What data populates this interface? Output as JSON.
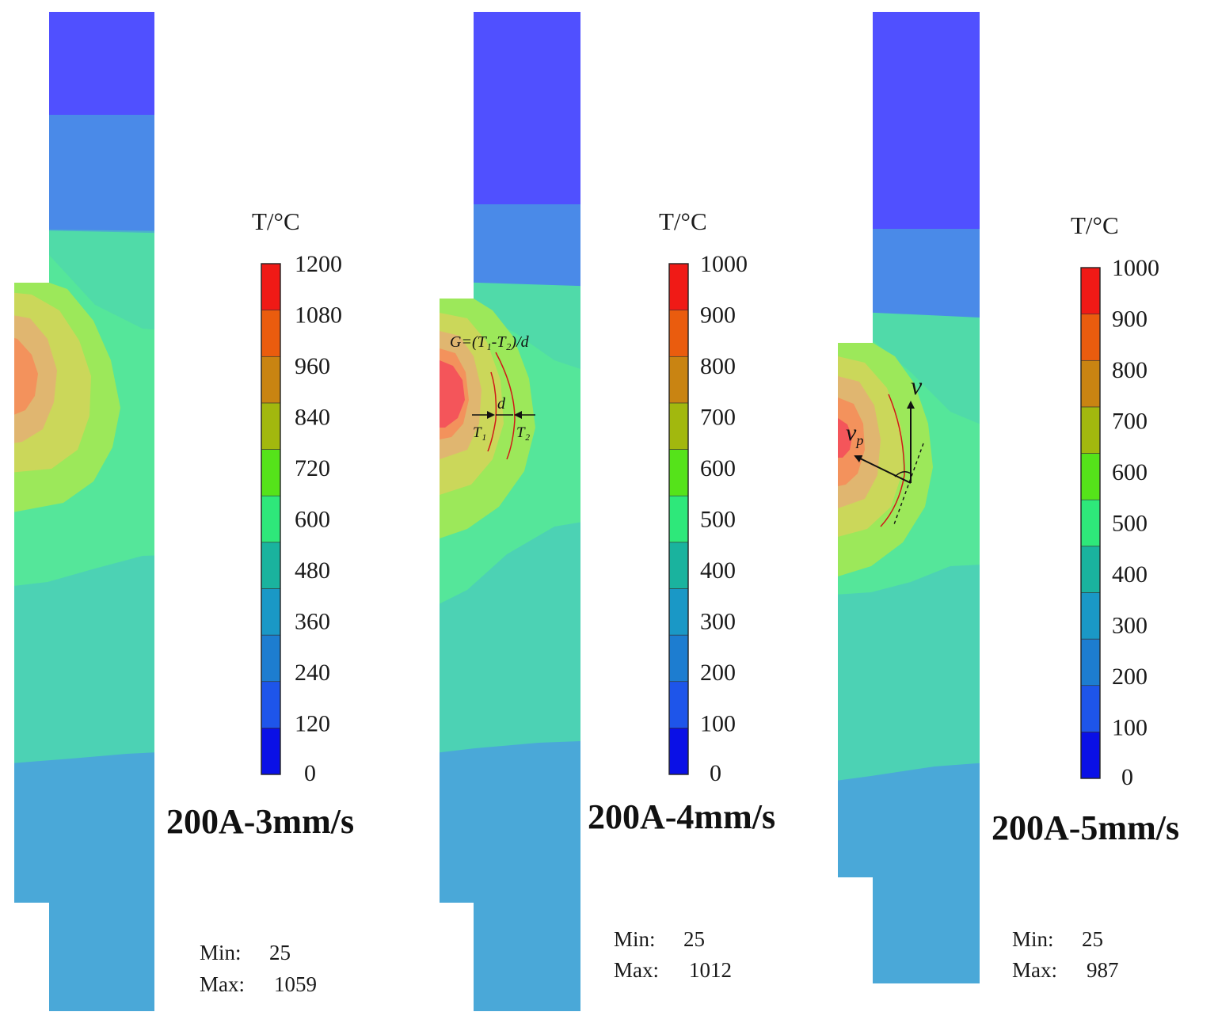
{
  "colors": {
    "c0": "#0a10e6",
    "c1": "#1e55ea",
    "c2": "#1d7dd0",
    "c3": "#1a98c6",
    "c4": "#1ab39e",
    "c5": "#2ee87a",
    "c6": "#55e31a",
    "c7": "#a2b80e",
    "c8": "#c98412",
    "c9": "#ea5c0e",
    "c10": "#f01a16",
    "field_cold": "#5050ff",
    "field_blue": "#4a8ae8",
    "field_lblue": "#4aa8d8",
    "field_teal": "#4cd2b4",
    "field_green": "#55e69a",
    "field_lgreen": "#9ce85a",
    "field_yellow": "#cbd75a",
    "field_tan": "#e0b670",
    "field_orange": "#f3925c",
    "field_hot": "#f4555a",
    "annotation_red": "#d01818"
  },
  "panels": [
    {
      "legend_title": "T/°C",
      "ticks": [
        "0",
        "120",
        "240",
        "360",
        "480",
        "600",
        "720",
        "840",
        "960",
        "1080",
        "1200"
      ],
      "case_label": "200A-3mm/s",
      "min_label": "Min:",
      "min_value": "25",
      "max_label": "Max:",
      "max_value": "1059"
    },
    {
      "legend_title": "T/°C",
      "ticks": [
        "0",
        "100",
        "200",
        "300",
        "400",
        "500",
        "600",
        "700",
        "800",
        "900",
        "1000"
      ],
      "case_label": "200A-4mm/s",
      "min_label": "Min:",
      "min_value": "25",
      "max_label": "Max:",
      "max_value": "1012"
    },
    {
      "legend_title": "T/°C",
      "ticks": [
        "0",
        "100",
        "200",
        "300",
        "400",
        "500",
        "600",
        "700",
        "800",
        "900",
        "1000"
      ],
      "case_label": "200A-5mm/s",
      "min_label": "Min:",
      "min_value": "25",
      "max_label": "Max:",
      "max_value": "987"
    }
  ],
  "annotations": {
    "gradient_formula": "G=(T₁-T₂)/d",
    "distance": "d",
    "t1": "T₁",
    "t2": "T₂",
    "velocity": "v",
    "velocity_p_base": "v",
    "velocity_p_sub": "p"
  }
}
